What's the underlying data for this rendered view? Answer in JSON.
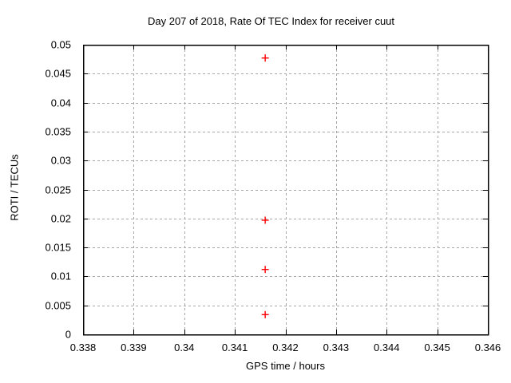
{
  "chart_data": {
    "type": "scatter",
    "title": "Day 207 of 2018, Rate Of TEC Index for receiver cuut",
    "xlabel": "GPS time / hours",
    "ylabel": "ROTI / TECUs",
    "xlim": [
      0.338,
      0.346
    ],
    "ylim": [
      0,
      0.05
    ],
    "grid": true,
    "legend_position": "none",
    "marker": "plus",
    "marker_color": "#ff0000",
    "grid_color": "#a8a8a8",
    "axis_color": "#000000",
    "background_color": "#ffffff",
    "xticks": {
      "values": [
        0.338,
        0.339,
        0.34,
        0.341,
        0.342,
        0.343,
        0.344,
        0.345,
        0.346
      ],
      "labels": [
        "0.338",
        "0.339",
        "0.34",
        "0.341",
        "0.342",
        "0.343",
        "0.344",
        "0.345",
        "0.346"
      ]
    },
    "yticks": {
      "values": [
        0,
        0.005,
        0.01,
        0.015,
        0.02,
        0.025,
        0.03,
        0.035,
        0.04,
        0.045,
        0.05
      ],
      "labels": [
        "0",
        "0.005",
        "0.01",
        "0.015",
        "0.02",
        "0.025",
        "0.03",
        "0.035",
        "0.04",
        "0.045",
        "0.05"
      ]
    },
    "series": [
      {
        "name": "ROTI",
        "x": [
          0.3416,
          0.3416,
          0.3416,
          0.3416
        ],
        "y": [
          0.0477,
          0.0197,
          0.0112,
          0.0034
        ]
      }
    ]
  }
}
